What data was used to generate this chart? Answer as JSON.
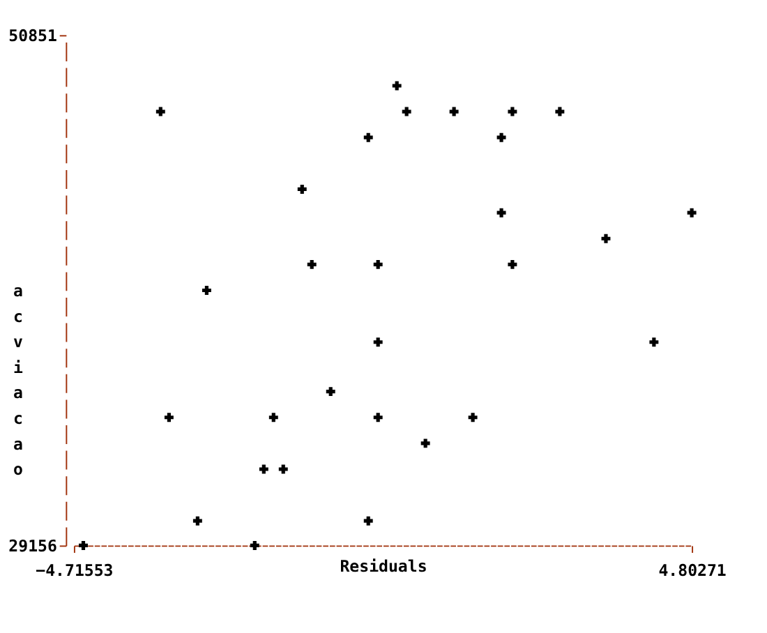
{
  "chart_data": {
    "type": "scatter",
    "xlabel": "Residuals",
    "ylabel": "acviacao",
    "x": [
      0.26,
      -3.38,
      0.41,
      1.14,
      2.04,
      2.77,
      -0.18,
      1.87,
      -1.2,
      1.87,
      4.80271,
      3.48,
      -1.05,
      -0.03,
      2.04,
      -2.67,
      -0.03,
      4.22,
      -0.76,
      -3.25,
      -1.64,
      -0.03,
      1.43,
      0.7,
      -1.79,
      -1.49,
      -2.81,
      -0.18,
      -4.57,
      -1.93
    ],
    "values": [
      48700,
      47600,
      47600,
      47600,
      47600,
      47600,
      46500,
      46500,
      44300,
      43300,
      43300,
      42200,
      41100,
      41100,
      41100,
      40000,
      37800,
      37800,
      35700,
      34600,
      34600,
      34600,
      34600,
      33500,
      32400,
      32400,
      30200,
      30200,
      29156,
      29156
    ],
    "color": "#000000",
    "marker": "cross",
    "xlim": [
      -4.71553,
      4.80271
    ],
    "ylim": [
      29156,
      50851
    ],
    "xticks": [
      -4.71553,
      4.80271
    ],
    "yticks": [
      29156,
      50851
    ]
  }
}
